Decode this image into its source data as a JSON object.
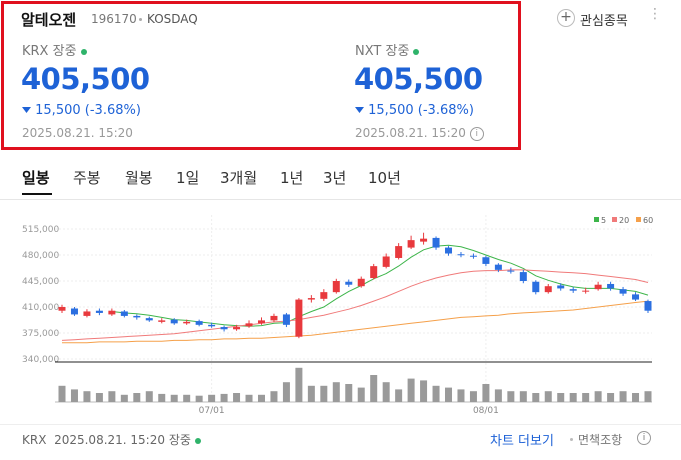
{
  "header": {
    "name": "알테오젠",
    "code": "196170",
    "market": "KOSDAQ",
    "watch": "관심종목"
  },
  "quotes": [
    {
      "exchange": "KRX",
      "status": "장중",
      "price": "405,500",
      "change": "15,500",
      "change_pct": "(-3.68%)",
      "time": "2025.08.21. 15:20"
    },
    {
      "exchange": "NXT",
      "status": "장중",
      "price": "405,500",
      "change": "15,500",
      "change_pct": "(-3.68%)",
      "time": "2025.08.21. 15:20"
    }
  ],
  "tabs": [
    "일봉",
    "주봉",
    "월봉",
    "1일",
    "3개월",
    "1년",
    "3년",
    "10년"
  ],
  "chart_data": {
    "type": "candlestick",
    "categories": [
      null,
      null,
      null,
      null,
      null,
      null,
      null,
      null,
      null,
      null,
      null,
      null,
      "07/01",
      null,
      null,
      null,
      null,
      null,
      null,
      null,
      null,
      null,
      null,
      null,
      null,
      null,
      null,
      null,
      null,
      null,
      null,
      null,
      null,
      null,
      "08/01",
      null,
      null,
      null,
      null,
      null,
      null,
      null,
      null,
      null,
      null,
      null,
      null,
      null
    ],
    "open": [
      405000,
      408000,
      398000,
      405000,
      400000,
      404000,
      398000,
      395000,
      390000,
      393000,
      388000,
      391000,
      386000,
      383000,
      380000,
      384000,
      388000,
      392000,
      400000,
      370000,
      420000,
      421000,
      430000,
      444000,
      438000,
      449000,
      464000,
      476000,
      490000,
      498000,
      503000,
      490000,
      481000,
      479000,
      477000,
      467000,
      459000,
      457000,
      444000,
      430000,
      439000,
      434000,
      431000,
      434000,
      441000,
      434000,
      427000,
      418000
    ],
    "high": [
      413000,
      410000,
      407000,
      408000,
      408000,
      406000,
      400000,
      397000,
      395000,
      395000,
      393000,
      393000,
      389000,
      385000,
      386000,
      392000,
      396000,
      401000,
      402000,
      422000,
      426000,
      434000,
      448000,
      447000,
      451000,
      468000,
      482000,
      496000,
      506000,
      510000,
      505000,
      492000,
      484000,
      482000,
      479000,
      469000,
      463000,
      460000,
      446000,
      441000,
      442000,
      437000,
      436000,
      444000,
      444000,
      437000,
      430000,
      420000
    ],
    "low": [
      402000,
      398000,
      396000,
      399000,
      398000,
      396000,
      393000,
      390000,
      388000,
      386000,
      386000,
      384000,
      382000,
      377000,
      378000,
      382000,
      386000,
      390000,
      383000,
      368000,
      416000,
      418000,
      428000,
      437000,
      436000,
      447000,
      462000,
      474000,
      488000,
      494000,
      487000,
      479000,
      477000,
      475000,
      465000,
      457000,
      455000,
      442000,
      427000,
      428000,
      432000,
      429000,
      428000,
      432000,
      432000,
      425000,
      418000,
      402000
    ],
    "close": [
      410000,
      400000,
      404000,
      402000,
      405000,
      398000,
      396000,
      392000,
      392000,
      388000,
      390000,
      386000,
      384000,
      380000,
      383000,
      388000,
      392000,
      398000,
      386000,
      420000,
      422000,
      430000,
      445000,
      440000,
      448000,
      465000,
      478000,
      492000,
      500000,
      502000,
      490000,
      482000,
      480000,
      478000,
      468000,
      460000,
      458000,
      445000,
      430000,
      438000,
      435000,
      432000,
      432000,
      440000,
      435000,
      428000,
      420000,
      405000
    ],
    "up_color": "#e8393d",
    "down_color": "#2b6fe0",
    "ylim": [
      340000,
      515000
    ],
    "yticks": [
      {
        "value": 515000,
        "label": "515,000"
      },
      {
        "value": 480000,
        "label": "480,000"
      },
      {
        "value": 445000,
        "label": "445,000"
      },
      {
        "value": 410000,
        "label": "410,000"
      },
      {
        "value": 375000,
        "label": "375,000"
      },
      {
        "value": 340000,
        "label": "340,000"
      }
    ],
    "series": [
      {
        "name": "5",
        "color": "#3db54a",
        "values": [
          null,
          null,
          null,
          null,
          404000,
          402000,
          401000,
          399000,
          396000,
          393000,
          392000,
          390000,
          388000,
          386000,
          385000,
          384000,
          385000,
          388000,
          389000,
          397000,
          404000,
          410000,
          421000,
          431000,
          439000,
          448000,
          455000,
          465000,
          477000,
          487000,
          492000,
          493000,
          491000,
          486000,
          480000,
          474000,
          469000,
          462000,
          452000,
          446000,
          441000,
          437000,
          435000,
          435000,
          435000,
          433000,
          431000,
          426000
        ]
      },
      {
        "name": "20",
        "color": "#f07a7a",
        "values": [
          365000,
          366000,
          367000,
          368000,
          369000,
          370000,
          371000,
          372000,
          373000,
          374000,
          376000,
          378000,
          380000,
          382000,
          384000,
          386000,
          388000,
          390000,
          391000,
          393000,
          396000,
          399000,
          403000,
          407000,
          412000,
          418000,
          424000,
          431000,
          438000,
          444000,
          449000,
          453000,
          456000,
          458000,
          459000,
          459000,
          460000,
          460000,
          459000,
          458000,
          457000,
          456000,
          455000,
          453000,
          451000,
          449000,
          447000,
          443000
        ]
      },
      {
        "name": "60",
        "color": "#f5a04a",
        "values": [
          362000,
          362000,
          362000,
          363000,
          363000,
          363000,
          364000,
          364000,
          364000,
          365000,
          365000,
          366000,
          366000,
          367000,
          367000,
          368000,
          368000,
          369000,
          370000,
          371000,
          372000,
          374000,
          376000,
          378000,
          380000,
          382000,
          384000,
          386000,
          388000,
          390000,
          392000,
          394000,
          396000,
          397000,
          398000,
          399000,
          401000,
          402000,
          403000,
          404000,
          405000,
          406000,
          408000,
          410000,
          412000,
          414000,
          416000,
          418000
        ]
      }
    ],
    "volume": {
      "color": "#9a9a9a",
      "ylim": [
        0,
        400000
      ],
      "values": [
        180000,
        140000,
        120000,
        100000,
        120000,
        80000,
        100000,
        120000,
        90000,
        80000,
        80000,
        70000,
        80000,
        90000,
        100000,
        80000,
        80000,
        120000,
        220000,
        380000,
        180000,
        180000,
        220000,
        200000,
        160000,
        300000,
        220000,
        140000,
        260000,
        240000,
        180000,
        160000,
        140000,
        120000,
        200000,
        140000,
        120000,
        120000,
        100000,
        120000,
        100000,
        100000,
        100000,
        120000,
        100000,
        120000,
        100000,
        120000
      ]
    }
  },
  "footer": {
    "exchange": "KRX",
    "time": "2025.08.21. 15:20",
    "status": "장중",
    "more": "차트 더보기",
    "disclaimer": "면책조항"
  }
}
